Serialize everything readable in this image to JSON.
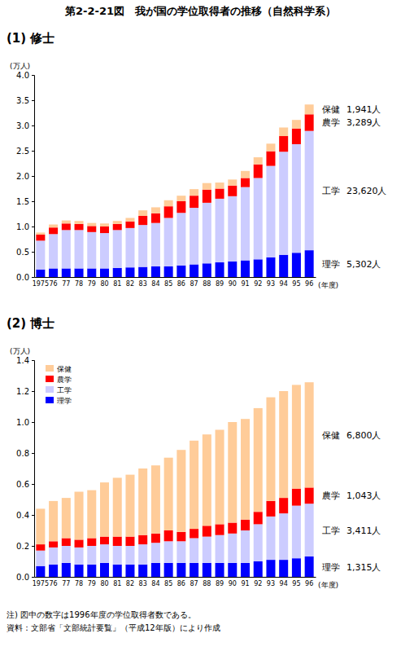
{
  "title": "第2-2-21図　我が国の学位取得者の推移（自然科学系）",
  "notes": [
    "注) 図中の数字は1996年度の学位取得者数である。",
    "資料：文部省「文部統計要覧」（平成12年版）により作成"
  ],
  "chart_data": [
    {
      "type": "bar",
      "stacked": true,
      "grid": false,
      "title": "(1) 修士",
      "y_label": "(万人)",
      "x_label": "(年度)",
      "categories": [
        "1975",
        "76",
        "77",
        "78",
        "79",
        "80",
        "81",
        "82",
        "83",
        "84",
        "85",
        "86",
        "87",
        "88",
        "89",
        "90",
        "91",
        "92",
        "93",
        "94",
        "95",
        "96"
      ],
      "series": [
        {
          "name": "理学",
          "color": "#0000ff",
          "values": [
            0.15,
            0.17,
            0.17,
            0.17,
            0.17,
            0.17,
            0.18,
            0.19,
            0.2,
            0.21,
            0.21,
            0.23,
            0.25,
            0.27,
            0.29,
            0.31,
            0.33,
            0.35,
            0.39,
            0.44,
            0.48,
            0.5302
          ]
        },
        {
          "name": "工学",
          "color": "#ccccff",
          "values": [
            0.57,
            0.68,
            0.76,
            0.76,
            0.72,
            0.7,
            0.75,
            0.78,
            0.83,
            0.86,
            0.96,
            1.04,
            1.12,
            1.2,
            1.26,
            1.29,
            1.45,
            1.61,
            1.81,
            2.04,
            2.15,
            2.362
          ]
        },
        {
          "name": "農学",
          "color": "#ff0000",
          "values": [
            0.12,
            0.13,
            0.13,
            0.12,
            0.12,
            0.13,
            0.12,
            0.13,
            0.18,
            0.19,
            0.23,
            0.23,
            0.24,
            0.26,
            0.2,
            0.21,
            0.18,
            0.27,
            0.29,
            0.31,
            0.31,
            0.3289
          ]
        },
        {
          "name": "保健",
          "color": "#ffcc99",
          "values": [
            0.04,
            0.06,
            0.06,
            0.06,
            0.06,
            0.06,
            0.06,
            0.07,
            0.11,
            0.12,
            0.12,
            0.11,
            0.13,
            0.13,
            0.12,
            0.12,
            0.14,
            0.14,
            0.15,
            0.17,
            0.17,
            0.1941
          ]
        }
      ],
      "annotations": [
        "5,302人",
        "23,620人",
        "3,289人",
        "1,941人"
      ],
      "ylim": [
        0,
        4
      ],
      "yticks": [
        {
          "value": 0,
          "label": "0.0"
        },
        0.5,
        {
          "value": 1,
          "label": "1.0"
        },
        1.5,
        {
          "value": 2,
          "label": "2.0"
        },
        2.5,
        {
          "value": 3,
          "label": "3.0"
        },
        3.5,
        {
          "value": 4,
          "label": "4.0"
        }
      ]
    },
    {
      "type": "bar",
      "stacked": true,
      "grid": false,
      "legend": "top-left",
      "title": "(2) 博士",
      "y_label": "(万人)",
      "x_label": "(年度)",
      "categories": [
        "1975",
        "76",
        "77",
        "78",
        "79",
        "80",
        "81",
        "82",
        "83",
        "84",
        "85",
        "86",
        "87",
        "88",
        "89",
        "90",
        "91",
        "92",
        "93",
        "94",
        "95",
        "96"
      ],
      "series": [
        {
          "name": "理学",
          "color": "#0000ff",
          "values": [
            0.07,
            0.08,
            0.09,
            0.08,
            0.08,
            0.09,
            0.08,
            0.08,
            0.08,
            0.09,
            0.09,
            0.09,
            0.09,
            0.09,
            0.09,
            0.09,
            0.09,
            0.1,
            0.11,
            0.11,
            0.12,
            0.1315
          ]
        },
        {
          "name": "工学",
          "color": "#ccccff",
          "values": [
            0.1,
            0.11,
            0.11,
            0.11,
            0.12,
            0.12,
            0.12,
            0.12,
            0.13,
            0.13,
            0.14,
            0.14,
            0.16,
            0.17,
            0.18,
            0.19,
            0.21,
            0.24,
            0.28,
            0.3,
            0.34,
            0.3411
          ]
        },
        {
          "name": "農学",
          "color": "#ff0000",
          "values": [
            0.04,
            0.04,
            0.05,
            0.05,
            0.05,
            0.05,
            0.06,
            0.06,
            0.06,
            0.06,
            0.07,
            0.06,
            0.06,
            0.07,
            0.07,
            0.07,
            0.07,
            0.08,
            0.1,
            0.1,
            0.11,
            0.1043
          ]
        },
        {
          "name": "保健",
          "color": "#ffcc99",
          "values": [
            0.23,
            0.26,
            0.26,
            0.31,
            0.31,
            0.35,
            0.38,
            0.4,
            0.43,
            0.44,
            0.47,
            0.53,
            0.57,
            0.59,
            0.61,
            0.65,
            0.65,
            0.67,
            0.67,
            0.69,
            0.67,
            0.68
          ]
        }
      ],
      "annotations": [
        "1,315人",
        "3,411人",
        "1,043人",
        "6,800人"
      ],
      "ylim": [
        0,
        1.4
      ],
      "yticks": [
        {
          "value": 0,
          "label": "0.0"
        },
        0.2,
        0.4,
        0.6,
        0.8,
        {
          "value": 1,
          "label": "1.0"
        },
        1.2,
        1.4
      ]
    }
  ]
}
